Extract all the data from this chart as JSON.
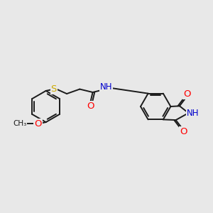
{
  "background_color": "#e8e8e8",
  "bond_color": "#1a1a1a",
  "bond_width": 1.4,
  "atom_colors": {
    "O": "#ff0000",
    "N": "#0000cd",
    "S": "#ccaa00",
    "C": "#1a1a1a"
  },
  "font_size": 8.5,
  "xlim": [
    0,
    10
  ],
  "ylim": [
    2,
    8
  ]
}
